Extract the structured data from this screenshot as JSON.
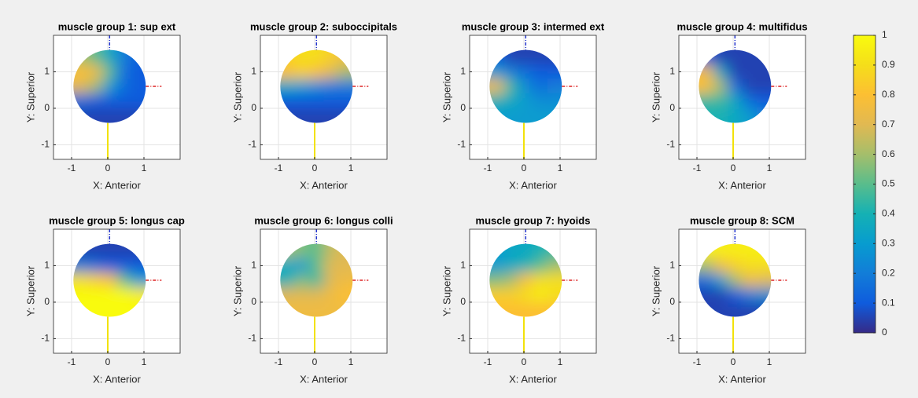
{
  "chart_data": [
    {
      "type": "heatmap",
      "title": "muscle group 1: sup ext",
      "x_label": "X: Anterior",
      "y_label": "Y: Superior",
      "x": [
        -0.75,
        -0.35,
        0.05,
        0.45,
        0.85
      ],
      "y": [
        1.4,
        1.0,
        0.6,
        0.2,
        -0.2
      ],
      "values": [
        [
          0.6,
          0.5,
          0.35,
          0.2,
          0.1
        ],
        [
          0.8,
          0.75,
          0.5,
          0.15,
          0.1
        ],
        [
          0.7,
          0.6,
          0.3,
          0.15,
          0.1
        ],
        [
          0.15,
          0.1,
          0.1,
          0.1,
          0.1
        ],
        [
          0.05,
          0.05,
          0.05,
          0.05,
          0.05
        ]
      ],
      "xlim": [
        -1.5,
        2
      ],
      "ylim": [
        -1.4,
        2
      ],
      "xticks": [
        -1,
        0,
        1
      ],
      "yticks": [
        -1,
        0,
        1
      ],
      "grid": true
    },
    {
      "type": "heatmap",
      "title": "muscle group 2: suboccipitals",
      "x_label": "X: Anterior",
      "y_label": "Y: Superior",
      "x": [
        -0.75,
        -0.35,
        0.05,
        0.45,
        0.85
      ],
      "y": [
        1.4,
        1.0,
        0.6,
        0.2,
        -0.2
      ],
      "values": [
        [
          0.85,
          0.9,
          0.9,
          0.85,
          0.75
        ],
        [
          0.8,
          0.85,
          0.8,
          0.7,
          0.6
        ],
        [
          0.35,
          0.3,
          0.25,
          0.2,
          0.2
        ],
        [
          0.1,
          0.1,
          0.1,
          0.1,
          0.1
        ],
        [
          0.05,
          0.05,
          0.05,
          0.05,
          0.05
        ]
      ],
      "xlim": [
        -1.5,
        2
      ],
      "ylim": [
        -1.4,
        2
      ],
      "xticks": [
        -1,
        0,
        1
      ],
      "yticks": [
        -1,
        0,
        1
      ],
      "grid": true
    },
    {
      "type": "heatmap",
      "title": "muscle group 3: intermed ext",
      "x_label": "X: Anterior",
      "y_label": "Y: Superior",
      "x": [
        -0.75,
        -0.35,
        0.05,
        0.45,
        0.85
      ],
      "y": [
        1.4,
        1.0,
        0.6,
        0.2,
        -0.2
      ],
      "values": [
        [
          0.1,
          0.05,
          0.05,
          0.05,
          0.05
        ],
        [
          0.3,
          0.2,
          0.15,
          0.1,
          0.1
        ],
        [
          0.75,
          0.45,
          0.25,
          0.15,
          0.2
        ],
        [
          0.4,
          0.35,
          0.3,
          0.25,
          0.25
        ],
        [
          0.3,
          0.3,
          0.3,
          0.3,
          0.3
        ]
      ],
      "xlim": [
        -1.5,
        2
      ],
      "ylim": [
        -1.4,
        2
      ],
      "xticks": [
        -1,
        0,
        1
      ],
      "yticks": [
        -1,
        0,
        1
      ],
      "grid": true
    },
    {
      "type": "heatmap",
      "title": "muscle group 4: multifidus",
      "x_label": "X: Anterior",
      "y_label": "Y: Superior",
      "x": [
        -0.75,
        -0.35,
        0.05,
        0.45,
        0.85
      ],
      "y": [
        1.4,
        1.0,
        0.6,
        0.2,
        -0.2
      ],
      "values": [
        [
          0.1,
          0.05,
          0.05,
          0.05,
          0.05
        ],
        [
          0.75,
          0.35,
          0.05,
          0.05,
          0.05
        ],
        [
          0.8,
          0.6,
          0.15,
          0.05,
          0.05
        ],
        [
          0.45,
          0.45,
          0.35,
          0.15,
          0.1
        ],
        [
          0.4,
          0.4,
          0.35,
          0.3,
          0.2
        ]
      ],
      "xlim": [
        -1.5,
        2
      ],
      "ylim": [
        -1.4,
        2
      ],
      "xticks": [
        -1,
        0,
        1
      ],
      "yticks": [
        -1,
        0,
        1
      ],
      "grid": true
    },
    {
      "type": "heatmap",
      "title": "muscle group 5: longus cap",
      "x_label": "X: Anterior",
      "y_label": "Y: Superior",
      "x": [
        -0.75,
        -0.35,
        0.05,
        0.45,
        0.85
      ],
      "y": [
        1.4,
        1.0,
        0.6,
        0.2,
        -0.2
      ],
      "values": [
        [
          0.05,
          0.05,
          0.05,
          0.05,
          0.05
        ],
        [
          0.2,
          0.15,
          0.1,
          0.1,
          0.1
        ],
        [
          0.9,
          0.85,
          0.8,
          0.5,
          0.3
        ],
        [
          1,
          1,
          1,
          1,
          0.95
        ],
        [
          1,
          1,
          1,
          1,
          1
        ]
      ],
      "xlim": [
        -1.5,
        2
      ],
      "ylim": [
        -1.4,
        2
      ],
      "xticks": [
        -1,
        0,
        1
      ],
      "yticks": [
        -1,
        0,
        1
      ],
      "grid": true
    },
    {
      "type": "heatmap",
      "title": "muscle group 6: longus colli",
      "x_label": "X: Anterior",
      "y_label": "Y: Superior",
      "x": [
        -0.75,
        -0.35,
        0.05,
        0.45,
        0.85
      ],
      "y": [
        1.4,
        1.0,
        0.6,
        0.2,
        -0.2
      ],
      "values": [
        [
          0.6,
          0.55,
          0.5,
          0.65,
          0.7
        ],
        [
          0.35,
          0.3,
          0.5,
          0.7,
          0.7
        ],
        [
          0.4,
          0.55,
          0.45,
          0.7,
          0.75
        ],
        [
          0.7,
          0.7,
          0.7,
          0.75,
          0.8
        ],
        [
          0.75,
          0.75,
          0.75,
          0.75,
          0.75
        ]
      ],
      "xlim": [
        -1.5,
        2
      ],
      "ylim": [
        -1.4,
        2
      ],
      "xticks": [
        -1,
        0,
        1
      ],
      "yticks": [
        -1,
        0,
        1
      ],
      "grid": true
    },
    {
      "type": "heatmap",
      "title": "muscle group 7: hyoids",
      "x_label": "X: Anterior",
      "y_label": "Y: Superior",
      "x": [
        -0.75,
        -0.35,
        0.05,
        0.45,
        0.85
      ],
      "y": [
        1.4,
        1.0,
        0.6,
        0.2,
        -0.2
      ],
      "values": [
        [
          0.3,
          0.35,
          0.35,
          0.4,
          0.45
        ],
        [
          0.3,
          0.35,
          0.4,
          0.5,
          0.6
        ],
        [
          0.55,
          0.6,
          0.8,
          0.9,
          0.9
        ],
        [
          0.85,
          0.85,
          0.9,
          0.95,
          0.9
        ],
        [
          0.8,
          0.8,
          0.8,
          0.8,
          0.8
        ]
      ],
      "xlim": [
        -1.5,
        2
      ],
      "ylim": [
        -1.4,
        2
      ],
      "xticks": [
        -1,
        0,
        1
      ],
      "yticks": [
        -1,
        0,
        1
      ],
      "grid": true
    },
    {
      "type": "heatmap",
      "title": "muscle group 8: SCM",
      "x_label": "X: Anterior",
      "y_label": "Y: Superior",
      "x": [
        -0.75,
        -0.35,
        0.05,
        0.45,
        0.85
      ],
      "y": [
        1.4,
        1.0,
        0.6,
        0.2,
        -0.2
      ],
      "values": [
        [
          0.95,
          0.95,
          0.95,
          0.95,
          0.95
        ],
        [
          0.6,
          0.75,
          0.85,
          0.9,
          0.9
        ],
        [
          0.15,
          0.3,
          0.6,
          0.75,
          0.7
        ],
        [
          0.05,
          0.05,
          0.1,
          0.2,
          0.25
        ],
        [
          0.05,
          0.05,
          0.05,
          0.05,
          0.05
        ]
      ],
      "xlim": [
        -1.5,
        2
      ],
      "ylim": [
        -1.4,
        2
      ],
      "xticks": [
        -1,
        0,
        1
      ],
      "yticks": [
        -1,
        0,
        1
      ],
      "grid": true
    },
    {
      "type": "colorbar",
      "ylim": [
        0,
        1
      ],
      "yticks": [
        0,
        0.1,
        0.2,
        0.3,
        0.4,
        0.5,
        0.6,
        0.7,
        0.8,
        0.9,
        1
      ],
      "colormap": [
        "#352a87",
        "#0f5cdd",
        "#127dd8",
        "#079ccf",
        "#15b1b4",
        "#59bd8c",
        "#a5be6b",
        "#e1b952",
        "#fcbf33",
        "#f5de1a",
        "#f9fb0e"
      ]
    }
  ]
}
